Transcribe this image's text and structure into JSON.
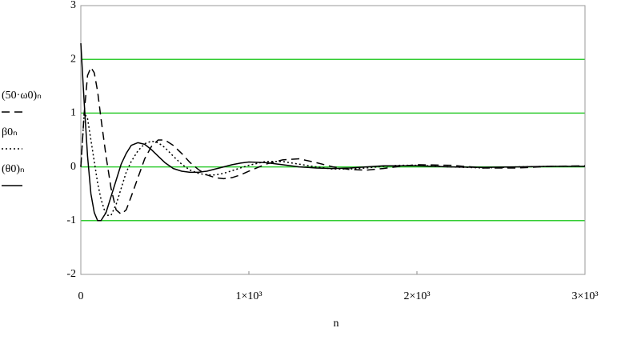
{
  "chart_data": {
    "type": "line",
    "xlabel": "n",
    "x": [
      0,
      20,
      40,
      60,
      80,
      100,
      120,
      150,
      180,
      210,
      240,
      270,
      300,
      340,
      380,
      420,
      460,
      500,
      550,
      600,
      650,
      700,
      750,
      800,
      850,
      900,
      950,
      1000,
      1100,
      1200,
      1300,
      1400,
      1500,
      1600,
      1700,
      1800,
      1900,
      2000,
      2200,
      2400,
      2600,
      2800,
      3000
    ],
    "series": [
      {
        "name": "(50·ω0)ₙ",
        "color": "#000000",
        "dash": "10,6",
        "values": [
          0,
          1.0,
          1.7,
          1.85,
          1.75,
          1.4,
          0.9,
          0.2,
          -0.4,
          -0.8,
          -0.88,
          -0.8,
          -0.55,
          -0.2,
          0.15,
          0.38,
          0.5,
          0.5,
          0.4,
          0.25,
          0.08,
          -0.05,
          -0.15,
          -0.2,
          -0.22,
          -0.2,
          -0.15,
          -0.08,
          0.05,
          0.13,
          0.15,
          0.08,
          0,
          -0.05,
          -0.06,
          -0.03,
          0.01,
          0.04,
          0.03,
          -0.02,
          -0.02,
          0.01,
          0.02
        ]
      },
      {
        "name": "β0ₙ",
        "color": "#000000",
        "dash": "2,3",
        "values": [
          0,
          1.0,
          0.9,
          0.5,
          0.1,
          -0.3,
          -0.6,
          -0.9,
          -0.9,
          -0.7,
          -0.4,
          -0.1,
          0.1,
          0.3,
          0.43,
          0.48,
          0.45,
          0.36,
          0.2,
          0.05,
          -0.06,
          -0.12,
          -0.15,
          -0.15,
          -0.12,
          -0.07,
          -0.02,
          0.03,
          0.1,
          0.1,
          0.05,
          0,
          -0.04,
          -0.04,
          -0.02,
          0.01,
          0.03,
          0.03,
          0,
          -0.02,
          0,
          0.01,
          0.01
        ]
      },
      {
        "name": "(θ0)ₙ",
        "color": "#000000",
        "dash": "none",
        "values": [
          2.3,
          1.2,
          0.2,
          -0.5,
          -0.85,
          -1.0,
          -1.0,
          -0.85,
          -0.55,
          -0.25,
          0.05,
          0.25,
          0.4,
          0.45,
          0.42,
          0.32,
          0.2,
          0.08,
          -0.03,
          -0.08,
          -0.1,
          -0.1,
          -0.08,
          -0.04,
          0,
          0.04,
          0.07,
          0.09,
          0.08,
          0.04,
          0,
          -0.02,
          -0.03,
          -0.02,
          0,
          0.02,
          0.02,
          0.02,
          0,
          -0.01,
          0,
          0.01,
          0.01
        ]
      }
    ],
    "xlim": [
      0,
      3000
    ],
    "xticks": [
      0,
      {
        "value": 1000,
        "label": "1×10³"
      },
      {
        "value": 2000,
        "label": "2×10³"
      },
      {
        "value": 3000,
        "label": "3×10³"
      }
    ],
    "ylim": [
      -2,
      3
    ],
    "yticks": [
      -2,
      -1,
      0,
      1,
      2,
      3
    ],
    "grid": true,
    "grid_color": "#33cc33"
  }
}
